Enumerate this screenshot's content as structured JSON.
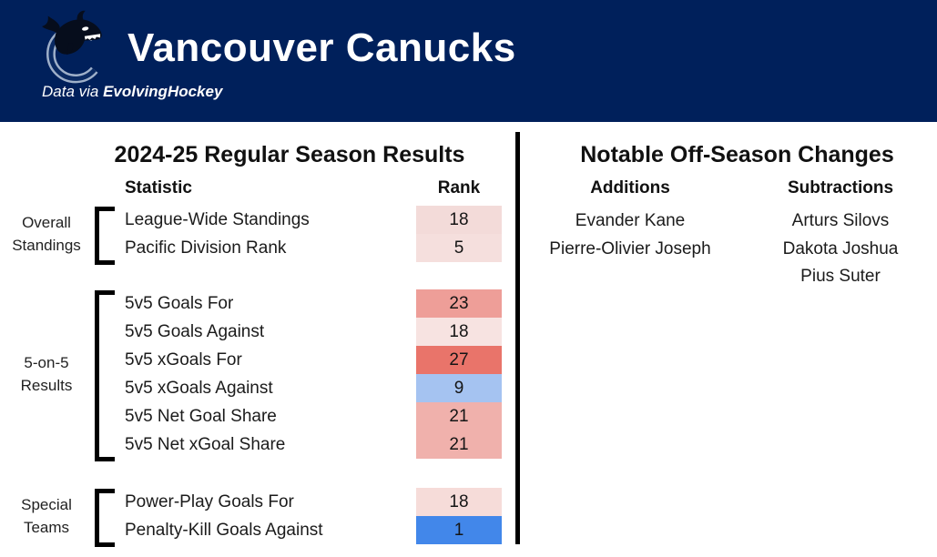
{
  "header": {
    "title": "Vancouver Canucks",
    "subtitle_prefix": "Data via ",
    "subtitle_brand": "EvolvingHockey",
    "bg_color": "#00205b",
    "logo_icon": "canucks-orca-logo"
  },
  "season_results": {
    "title": "2024-25 Regular Season Results",
    "columns": {
      "statistic": "Statistic",
      "rank": "Rank"
    },
    "groups": [
      {
        "label_line1": "Overall",
        "label_line2": "Standings",
        "rows": [
          {
            "statistic": "League-Wide Standings",
            "rank": "18",
            "color": "#f3dbd9"
          },
          {
            "statistic": "Pacific Division Rank",
            "rank": "5",
            "color": "#f5dfdd"
          }
        ]
      },
      {
        "label_line1": "5-on-5",
        "label_line2": "Results",
        "rows": [
          {
            "statistic": "5v5 Goals For",
            "rank": "23",
            "color": "#ee9e98"
          },
          {
            "statistic": "5v5 Goals Against",
            "rank": "18",
            "color": "#f7e3e1"
          },
          {
            "statistic": "5v5 xGoals For",
            "rank": "27",
            "color": "#e9746a"
          },
          {
            "statistic": "5v5 xGoals Against",
            "rank": "9",
            "color": "#a5c3f1"
          },
          {
            "statistic": "5v5 Net Goal Share",
            "rank": "21",
            "color": "#f0b1ac"
          },
          {
            "statistic": "5v5 Net xGoal Share",
            "rank": "21",
            "color": "#f0b1ac"
          }
        ]
      },
      {
        "label_line1": "Special",
        "label_line2": "Teams",
        "rows": [
          {
            "statistic": "Power-Play Goals For",
            "rank": "18",
            "color": "#f6dcd9"
          },
          {
            "statistic": "Penalty-Kill Goals Against",
            "rank": "1",
            "color": "#4287ea"
          }
        ]
      }
    ]
  },
  "offseason": {
    "title": "Notable Off-Season Changes",
    "additions": {
      "header": "Additions",
      "players": [
        "Evander Kane",
        "Pierre-Olivier Joseph"
      ]
    },
    "subtractions": {
      "header": "Subtractions",
      "players": [
        "Arturs Silovs",
        "Dakota Joshua",
        "Pius Suter"
      ]
    }
  },
  "chart_data": {
    "type": "table",
    "title": "2024-25 Regular Season Results",
    "columns": [
      "Statistic",
      "Rank"
    ],
    "categories": [
      "League-Wide Standings",
      "Pacific Division Rank",
      "5v5 Goals For",
      "5v5 Goals Against",
      "5v5 xGoals For",
      "5v5 xGoals Against",
      "5v5 Net Goal Share",
      "5v5 Net xGoal Share",
      "Power-Play Goals For",
      "Penalty-Kill Goals Against"
    ],
    "values": [
      18,
      5,
      23,
      18,
      27,
      9,
      21,
      21,
      18,
      1
    ],
    "group_labels": [
      "Overall Standings",
      "Overall Standings",
      "5-on-5 Results",
      "5-on-5 Results",
      "5-on-5 Results",
      "5-on-5 Results",
      "5-on-5 Results",
      "5-on-5 Results",
      "Special Teams",
      "Special Teams"
    ],
    "color_scale": "rank heatmap: blue = good rank (low number), white = middle, red = bad rank (high number)",
    "cell_colors": [
      "#f3dbd9",
      "#f5dfdd",
      "#ee9e98",
      "#f7e3e1",
      "#e9746a",
      "#a5c3f1",
      "#f0b1ac",
      "#f0b1ac",
      "#f6dcd9",
      "#4287ea"
    ]
  }
}
